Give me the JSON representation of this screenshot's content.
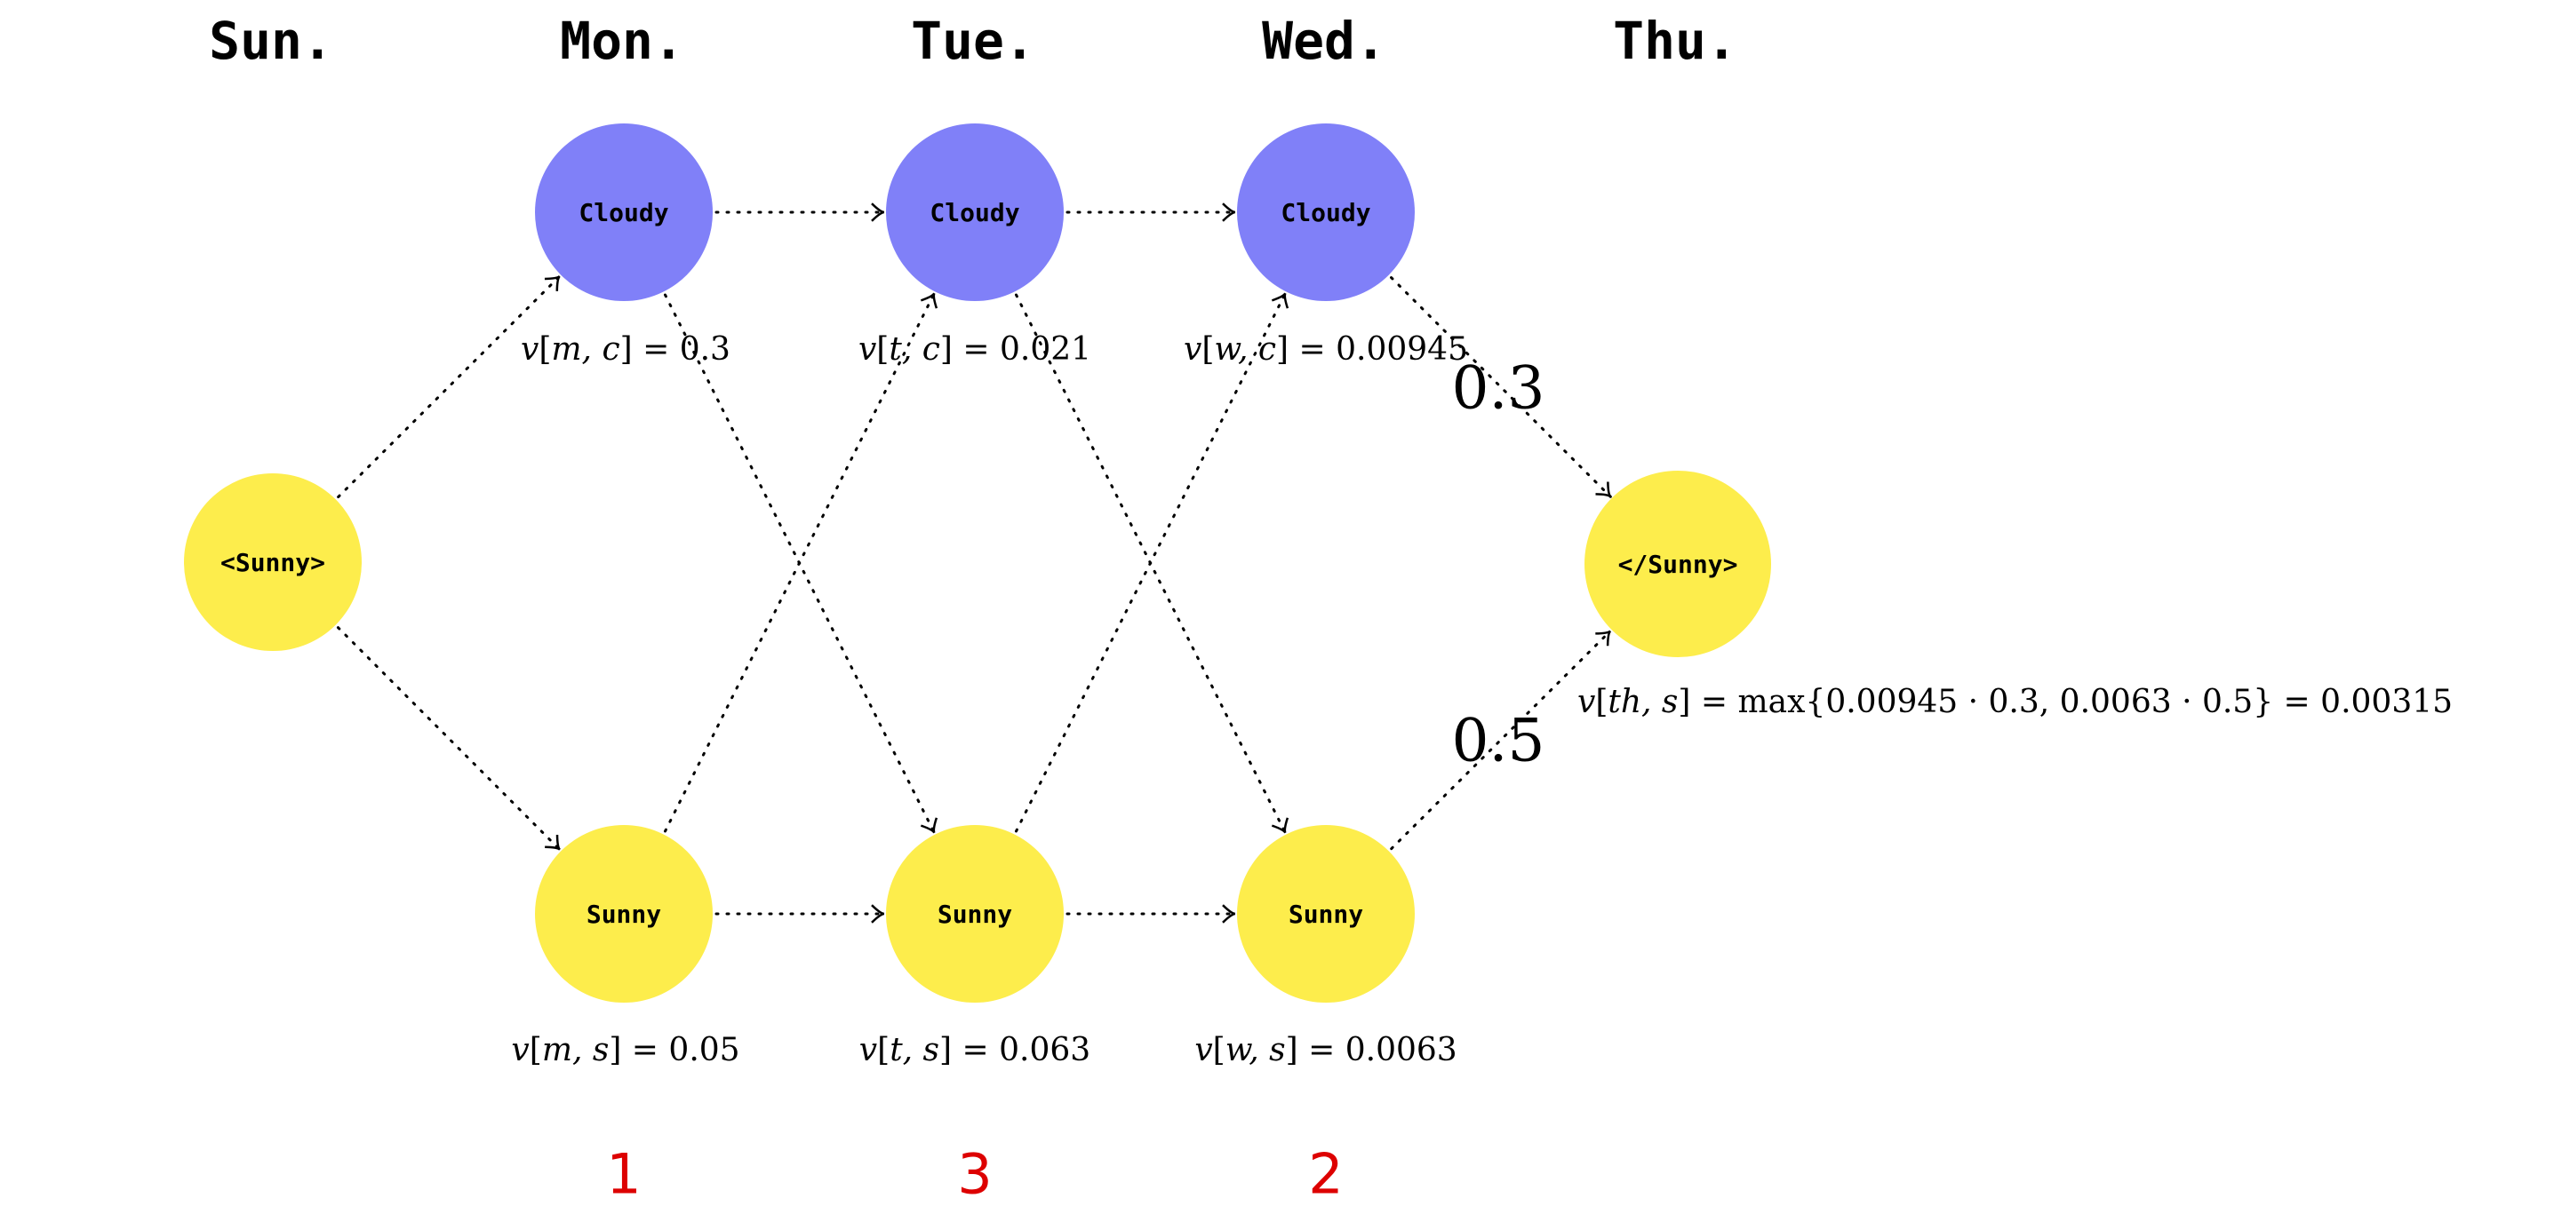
{
  "days": [
    "Sun.",
    "Mon.",
    "Tue.",
    "Wed.",
    "Thu."
  ],
  "nodes": {
    "start": "<Sunny>",
    "mon_c": "Cloudy",
    "tue_c": "Cloudy",
    "wed_c": "Cloudy",
    "mon_s": "Sunny",
    "tue_s": "Sunny",
    "wed_s": "Sunny",
    "end": "</Sunny>"
  },
  "values": {
    "mon_c": {
      "var": "v",
      "args": "m, c",
      "value": "0.3"
    },
    "tue_c": {
      "var": "v",
      "args": "t, c",
      "value": "0.021"
    },
    "wed_c": {
      "var": "v",
      "args": "w, c",
      "value": "0.00945"
    },
    "mon_s": {
      "var": "v",
      "args": "m, s",
      "value": "0.05"
    },
    "tue_s": {
      "var": "v",
      "args": "t, s",
      "value": "0.063"
    },
    "wed_s": {
      "var": "v",
      "args": "w, s",
      "value": "0.0063"
    },
    "end": {
      "var": "v",
      "args": "th, s",
      "value": "max{0.00945 · 0.3, 0.0063 · 0.5} = 0.00315"
    }
  },
  "weights": {
    "upper": "0.3",
    "lower": "0.5"
  },
  "ranks": [
    "1",
    "3",
    "2"
  ],
  "colors": {
    "cloudy": "#8080f8",
    "sunny": "#fded4c",
    "rank": "#dd0000"
  },
  "edges": [
    [
      "start",
      "mon_c"
    ],
    [
      "start",
      "mon_s"
    ],
    [
      "mon_c",
      "tue_c"
    ],
    [
      "mon_c",
      "tue_s"
    ],
    [
      "mon_s",
      "tue_c"
    ],
    [
      "mon_s",
      "tue_s"
    ],
    [
      "tue_c",
      "wed_c"
    ],
    [
      "tue_c",
      "wed_s"
    ],
    [
      "tue_s",
      "wed_c"
    ],
    [
      "tue_s",
      "wed_s"
    ],
    [
      "wed_c",
      "end"
    ],
    [
      "wed_s",
      "end"
    ]
  ]
}
